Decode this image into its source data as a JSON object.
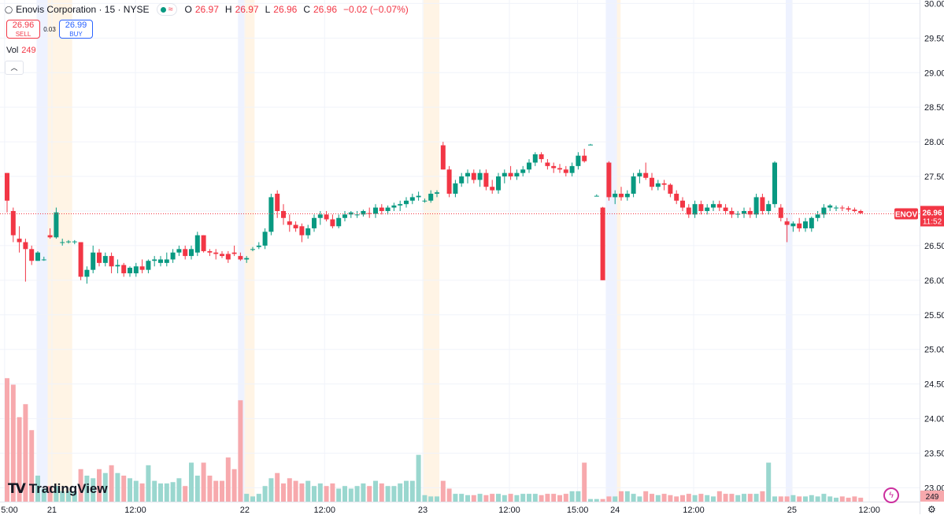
{
  "header": {
    "title": "Enovis Corporation · 15 · NYSE",
    "o_label": "O",
    "o": "26.97",
    "h_label": "H",
    "h": "26.97",
    "l_label": "L",
    "l": "26.96",
    "c_label": "C",
    "c": "26.96",
    "change": "−0.02 (−0.07%)",
    "wave": "≈"
  },
  "trade": {
    "sell_price": "26.96",
    "sell_label": "SELL",
    "spread": "0.03",
    "buy_price": "26.99",
    "buy_label": "BUY"
  },
  "volume": {
    "label": "Vol",
    "value": "249"
  },
  "collapse_icon": "chevron-up-icon",
  "logo": {
    "text": "TradingView",
    "mark": "TV"
  },
  "colors": {
    "up": "#089981",
    "down": "#f23645",
    "up_vol": "#9ad7cf",
    "down_vol": "#f7a9ad",
    "premarket": "#eef2ff",
    "postmarket": "#fff4e5",
    "price_line": "#f23645"
  },
  "chart_data": {
    "type": "candlestick",
    "symbol": "ENOV",
    "last_price": "26.96",
    "countdown": "11:52",
    "last_volume_label": "249",
    "ylim": [
      22.8,
      30.05
    ],
    "y_ticks": [
      "30.00",
      "29.50",
      "29.00",
      "28.50",
      "28.00",
      "27.50",
      "27.00",
      "26.50",
      "26.00",
      "25.50",
      "25.00",
      "24.50",
      "24.00",
      "23.50",
      "23.00"
    ],
    "x_ticks": [
      {
        "label": "5:00",
        "idx": -0.4
      },
      {
        "label": "21",
        "idx": 7.3
      },
      {
        "label": "12:00",
        "idx": 20.9
      },
      {
        "label": "22",
        "idx": 38.7
      },
      {
        "label": "12:00",
        "idx": 51.7
      },
      {
        "label": "23",
        "idx": 67.7
      },
      {
        "label": "12:00",
        "idx": 81.8
      },
      {
        "label": "15:00",
        "idx": 92.9
      },
      {
        "label": "24",
        "idx": 99.0
      },
      {
        "label": "12:00",
        "idx": 111.8
      },
      {
        "label": "25",
        "idx": 127.8
      },
      {
        "label": "12:00",
        "idx": 140.4
      }
    ],
    "sessions": [
      {
        "type": "pre",
        "from": 4.8,
        "to": 6.6
      },
      {
        "type": "post",
        "from": 6.6,
        "to": 10.6
      },
      {
        "type": "pre",
        "from": 37.6,
        "to": 38.6
      },
      {
        "type": "post",
        "from": 38.6,
        "to": 40.3
      },
      {
        "type": "post",
        "from": 67.8,
        "to": 70.4
      },
      {
        "type": "pre",
        "from": 97.5,
        "to": 99.3
      },
      {
        "type": "post",
        "from": 99.3,
        "to": 99.9
      },
      {
        "type": "pre",
        "from": 126.8,
        "to": 127.9
      }
    ],
    "volume_max": 100,
    "candles": [
      [
        27.55,
        27.55,
        26.98,
        27.15,
        95
      ],
      [
        27.0,
        27.05,
        26.55,
        26.65,
        90
      ],
      [
        26.6,
        26.78,
        26.4,
        26.55,
        65
      ],
      [
        26.55,
        26.6,
        25.98,
        26.45,
        75
      ],
      [
        26.45,
        26.5,
        26.22,
        26.28,
        55
      ],
      [
        26.28,
        26.42,
        26.28,
        26.4,
        20
      ],
      [
        26.3,
        26.34,
        26.28,
        26.3,
        10
      ],
      [
        26.65,
        26.75,
        26.6,
        26.62,
        12
      ],
      [
        26.62,
        27.05,
        26.6,
        26.98,
        12
      ],
      [
        26.55,
        26.6,
        26.5,
        26.55,
        8
      ],
      [
        26.55,
        26.58,
        26.53,
        26.56,
        8
      ],
      [
        26.55,
        26.58,
        26.52,
        26.56,
        8
      ],
      [
        26.55,
        26.55,
        26.0,
        26.05,
        25
      ],
      [
        26.05,
        26.2,
        25.95,
        26.15,
        20
      ],
      [
        26.15,
        26.5,
        26.1,
        26.4,
        18
      ],
      [
        26.4,
        26.45,
        26.2,
        26.25,
        25
      ],
      [
        26.25,
        26.4,
        26.2,
        26.35,
        22
      ],
      [
        26.35,
        26.4,
        26.1,
        26.2,
        28
      ],
      [
        26.2,
        26.3,
        26.1,
        26.22,
        22
      ],
      [
        26.22,
        26.25,
        26.05,
        26.1,
        20
      ],
      [
        26.1,
        26.2,
        26.05,
        26.18,
        18
      ],
      [
        26.1,
        26.25,
        26.05,
        26.2,
        16
      ],
      [
        26.2,
        26.3,
        26.1,
        26.15,
        14
      ],
      [
        26.15,
        26.3,
        26.1,
        26.28,
        28
      ],
      [
        26.28,
        26.35,
        26.2,
        26.3,
        16
      ],
      [
        26.25,
        26.35,
        26.2,
        26.3,
        14
      ],
      [
        26.25,
        26.4,
        26.2,
        26.3,
        14
      ],
      [
        26.3,
        26.45,
        26.25,
        26.4,
        15
      ],
      [
        26.4,
        26.5,
        26.35,
        26.45,
        18
      ],
      [
        26.45,
        26.5,
        26.3,
        26.35,
        12
      ],
      [
        26.35,
        26.5,
        26.3,
        26.45,
        30
      ],
      [
        26.4,
        26.7,
        26.35,
        26.65,
        20
      ],
      [
        26.65,
        26.65,
        26.4,
        26.42,
        30
      ],
      [
        26.42,
        26.45,
        26.35,
        26.4,
        20
      ],
      [
        26.4,
        26.45,
        26.3,
        26.38,
        16
      ],
      [
        26.38,
        26.42,
        26.32,
        26.35,
        16
      ],
      [
        26.38,
        26.42,
        26.25,
        26.3,
        34
      ],
      [
        26.4,
        26.5,
        26.35,
        26.38,
        25
      ],
      [
        26.35,
        26.4,
        26.28,
        26.3,
        78
      ],
      [
        26.3,
        26.35,
        26.25,
        26.32,
        6
      ],
      [
        26.45,
        26.48,
        26.42,
        26.45,
        4
      ],
      [
        26.48,
        26.55,
        26.45,
        26.5,
        6
      ],
      [
        26.5,
        26.75,
        26.45,
        26.7,
        12
      ],
      [
        26.7,
        27.25,
        26.65,
        27.2,
        18
      ],
      [
        27.25,
        27.3,
        26.9,
        27.0,
        22
      ],
      [
        27.0,
        27.1,
        26.8,
        26.9,
        14
      ],
      [
        26.85,
        26.95,
        26.7,
        26.8,
        18
      ],
      [
        26.8,
        26.85,
        26.7,
        26.75,
        16
      ],
      [
        26.78,
        26.82,
        26.55,
        26.65,
        14
      ],
      [
        26.65,
        26.8,
        26.6,
        26.75,
        16
      ],
      [
        26.75,
        26.95,
        26.7,
        26.9,
        12
      ],
      [
        26.9,
        27.0,
        26.8,
        26.95,
        14
      ],
      [
        26.95,
        27.0,
        26.85,
        26.88,
        12
      ],
      [
        26.88,
        26.95,
        26.75,
        26.78,
        14
      ],
      [
        26.78,
        26.95,
        26.75,
        26.9,
        10
      ],
      [
        26.9,
        27.0,
        26.85,
        26.95,
        12
      ],
      [
        26.95,
        27.0,
        26.9,
        26.98,
        10
      ],
      [
        26.95,
        27.0,
        26.9,
        26.95,
        12
      ],
      [
        26.95,
        27.02,
        26.92,
        27.0,
        14
      ],
      [
        26.97,
        27.05,
        26.9,
        26.96,
        12
      ],
      [
        26.96,
        27.1,
        26.9,
        27.05,
        16
      ],
      [
        27.05,
        27.1,
        26.95,
        27.0,
        14
      ],
      [
        27.0,
        27.08,
        26.95,
        27.05,
        12
      ],
      [
        27.05,
        27.12,
        27.0,
        27.08,
        12
      ],
      [
        27.08,
        27.15,
        27.0,
        27.1,
        14
      ],
      [
        27.1,
        27.2,
        27.05,
        27.15,
        16
      ],
      [
        27.15,
        27.25,
        27.1,
        27.2,
        16
      ],
      [
        27.2,
        27.28,
        27.15,
        27.22,
        36
      ],
      [
        27.15,
        27.18,
        27.12,
        27.15,
        5
      ],
      [
        27.15,
        27.3,
        27.12,
        27.25,
        4
      ],
      [
        27.25,
        27.3,
        27.2,
        27.27,
        4
      ],
      [
        27.95,
        28.0,
        27.6,
        27.6,
        16
      ],
      [
        27.6,
        27.65,
        27.2,
        27.25,
        10
      ],
      [
        27.25,
        27.45,
        27.2,
        27.4,
        6
      ],
      [
        27.4,
        27.55,
        27.35,
        27.5,
        6
      ],
      [
        27.5,
        27.6,
        27.4,
        27.55,
        5
      ],
      [
        27.55,
        27.6,
        27.4,
        27.45,
        5
      ],
      [
        27.45,
        27.6,
        27.35,
        27.55,
        6
      ],
      [
        27.55,
        27.6,
        27.3,
        27.35,
        5
      ],
      [
        27.35,
        27.45,
        27.25,
        27.3,
        6
      ],
      [
        27.3,
        27.55,
        27.25,
        27.5,
        6
      ],
      [
        27.5,
        27.6,
        27.4,
        27.55,
        5
      ],
      [
        27.55,
        27.65,
        27.45,
        27.5,
        6
      ],
      [
        27.5,
        27.6,
        27.45,
        27.55,
        5
      ],
      [
        27.55,
        27.65,
        27.5,
        27.6,
        6
      ],
      [
        27.6,
        27.75,
        27.55,
        27.7,
        6
      ],
      [
        27.7,
        27.85,
        27.65,
        27.82,
        6
      ],
      [
        27.82,
        27.85,
        27.7,
        27.75,
        5
      ],
      [
        27.7,
        27.75,
        27.6,
        27.65,
        6
      ],
      [
        27.65,
        27.7,
        27.55,
        27.62,
        6
      ],
      [
        27.62,
        27.68,
        27.55,
        27.6,
        5
      ],
      [
        27.6,
        27.65,
        27.5,
        27.55,
        6
      ],
      [
        27.55,
        27.7,
        27.5,
        27.65,
        8
      ],
      [
        27.65,
        27.85,
        27.6,
        27.8,
        8
      ],
      [
        27.8,
        27.9,
        27.7,
        27.72,
        30
      ],
      [
        27.95,
        27.97,
        27.95,
        27.96,
        2
      ],
      [
        27.22,
        27.24,
        27.22,
        27.22,
        2
      ],
      [
        27.05,
        27.06,
        26.0,
        26.0,
        2
      ],
      [
        27.7,
        27.72,
        27.15,
        27.2,
        4
      ],
      [
        27.2,
        27.3,
        27.1,
        27.25,
        4
      ],
      [
        27.25,
        27.35,
        27.15,
        27.2,
        8
      ],
      [
        27.2,
        27.3,
        27.15,
        27.25,
        8
      ],
      [
        27.25,
        27.55,
        27.2,
        27.5,
        6
      ],
      [
        27.5,
        27.6,
        27.4,
        27.55,
        4
      ],
      [
        27.55,
        27.7,
        27.45,
        27.48,
        8
      ],
      [
        27.48,
        27.55,
        27.3,
        27.35,
        6
      ],
      [
        27.35,
        27.45,
        27.3,
        27.4,
        5
      ],
      [
        27.4,
        27.45,
        27.3,
        27.38,
        6
      ],
      [
        27.38,
        27.4,
        27.2,
        27.25,
        5
      ],
      [
        27.25,
        27.3,
        27.1,
        27.15,
        4
      ],
      [
        27.15,
        27.2,
        27.0,
        27.05,
        5
      ],
      [
        27.05,
        27.1,
        26.9,
        26.95,
        6
      ],
      [
        26.95,
        27.15,
        26.9,
        27.1,
        5
      ],
      [
        27.1,
        27.15,
        26.95,
        27.0,
        6
      ],
      [
        27.0,
        27.1,
        26.95,
        27.05,
        5
      ],
      [
        27.05,
        27.15,
        27.0,
        27.1,
        4
      ],
      [
        27.1,
        27.15,
        27.0,
        27.05,
        8
      ],
      [
        27.05,
        27.1,
        26.95,
        27.0,
        6
      ],
      [
        27.0,
        27.05,
        26.9,
        26.95,
        6
      ],
      [
        26.95,
        27.0,
        26.9,
        26.96,
        5
      ],
      [
        26.96,
        27.05,
        26.9,
        27.0,
        6
      ],
      [
        27.0,
        27.05,
        26.9,
        26.95,
        6
      ],
      [
        26.95,
        27.25,
        26.9,
        27.2,
        6
      ],
      [
        27.2,
        27.25,
        26.95,
        27.0,
        8
      ],
      [
        27.0,
        27.15,
        26.95,
        27.1,
        30
      ],
      [
        27.1,
        27.72,
        27.05,
        27.7,
        4
      ],
      [
        27.05,
        27.1,
        26.85,
        26.9,
        4
      ],
      [
        26.85,
        26.9,
        26.55,
        26.8,
        4
      ],
      [
        26.78,
        26.85,
        26.7,
        26.82,
        5
      ],
      [
        26.82,
        26.9,
        26.7,
        26.75,
        4
      ],
      [
        26.75,
        26.9,
        26.7,
        26.85,
        4
      ],
      [
        26.75,
        26.92,
        26.7,
        26.9,
        5
      ],
      [
        26.9,
        27.0,
        26.85,
        26.95,
        4
      ],
      [
        26.95,
        27.1,
        26.9,
        27.05,
        6
      ],
      [
        27.05,
        27.1,
        27.0,
        27.08,
        4
      ],
      [
        27.05,
        27.08,
        27.0,
        27.05,
        3
      ],
      [
        27.05,
        27.08,
        27.0,
        27.04,
        4
      ],
      [
        27.04,
        27.07,
        26.99,
        27.02,
        3
      ],
      [
        27.02,
        27.05,
        26.98,
        27.0,
        4
      ],
      [
        27.0,
        27.02,
        26.96,
        26.97,
        3
      ]
    ]
  }
}
